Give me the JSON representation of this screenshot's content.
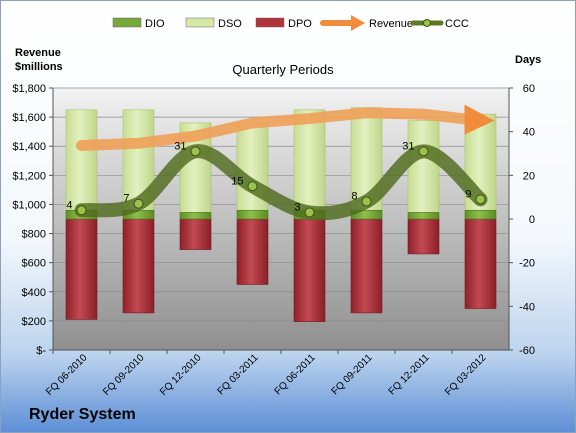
{
  "company": "Ryder System",
  "chart_data": {
    "type": "bar",
    "title": "Quarterly Periods",
    "left_axis_label_line1": "Revenue",
    "left_axis_label_line2": "$millions",
    "right_axis_label": "Days",
    "categories": [
      "FQ 06-2010",
      "FQ 09-2010",
      "FQ 12-2010",
      "FQ 03-2011",
      "FQ 06-2011",
      "FQ 09-2011",
      "FQ 12-2011",
      "FQ 03-2012"
    ],
    "left_ylim": [
      0,
      1800
    ],
    "left_ticks": [
      0,
      200,
      400,
      600,
      800,
      1000,
      1200,
      1400,
      1600,
      1800
    ],
    "left_tick_labels": [
      "$-",
      "$200",
      "$400",
      "$600",
      "$800",
      "$1,000",
      "$1,200",
      "$1,400",
      "$1,600",
      "$1,800"
    ],
    "right_ylim": [
      -60,
      60
    ],
    "right_ticks": [
      -60,
      -40,
      -20,
      0,
      20,
      40,
      60
    ],
    "right_tick_labels": [
      "-60",
      "-40",
      "-20",
      "0",
      "20",
      "40",
      "60"
    ],
    "series": [
      {
        "name": "DIO",
        "type": "stacked-bar",
        "axis": "right",
        "color": "#76a83a",
        "values": [
          4,
          4,
          3,
          4,
          4,
          4,
          3,
          4
        ]
      },
      {
        "name": "DSO",
        "type": "stacked-bar",
        "axis": "right",
        "color": "#d6e8a8",
        "values": [
          46,
          46,
          41,
          40,
          46,
          47,
          42,
          44
        ]
      },
      {
        "name": "DPO",
        "type": "stacked-bar",
        "axis": "right",
        "color": "#b0343c",
        "values": [
          -46,
          -43,
          -14,
          -30,
          -47,
          -43,
          -16,
          -41
        ]
      },
      {
        "name": "Revenue",
        "type": "line",
        "axis": "left",
        "color": "#f0a058",
        "values": [
          1405,
          1420,
          1470,
          1560,
          1590,
          1630,
          1620,
          1590
        ]
      },
      {
        "name": "CCC",
        "type": "line",
        "axis": "right",
        "color": "#4f6b1e",
        "values": [
          4,
          7,
          31,
          15,
          3,
          8,
          31,
          9
        ]
      }
    ],
    "ccc_labels": [
      "4",
      "7",
      "31",
      "15",
      "3",
      "8",
      "31",
      "9"
    ],
    "legend": [
      {
        "name": "DIO",
        "color": "#76a83a",
        "kind": "bar"
      },
      {
        "name": "DSO",
        "color": "#d6e8a8",
        "kind": "bar"
      },
      {
        "name": "DPO",
        "color": "#b0343c",
        "kind": "bar"
      },
      {
        "name": "Revenue",
        "color": "#f08c3c",
        "kind": "arrow"
      },
      {
        "name": "CCC",
        "color": "#5c7a24",
        "kind": "line-marker"
      }
    ],
    "legend_position": "top",
    "grid": true
  }
}
